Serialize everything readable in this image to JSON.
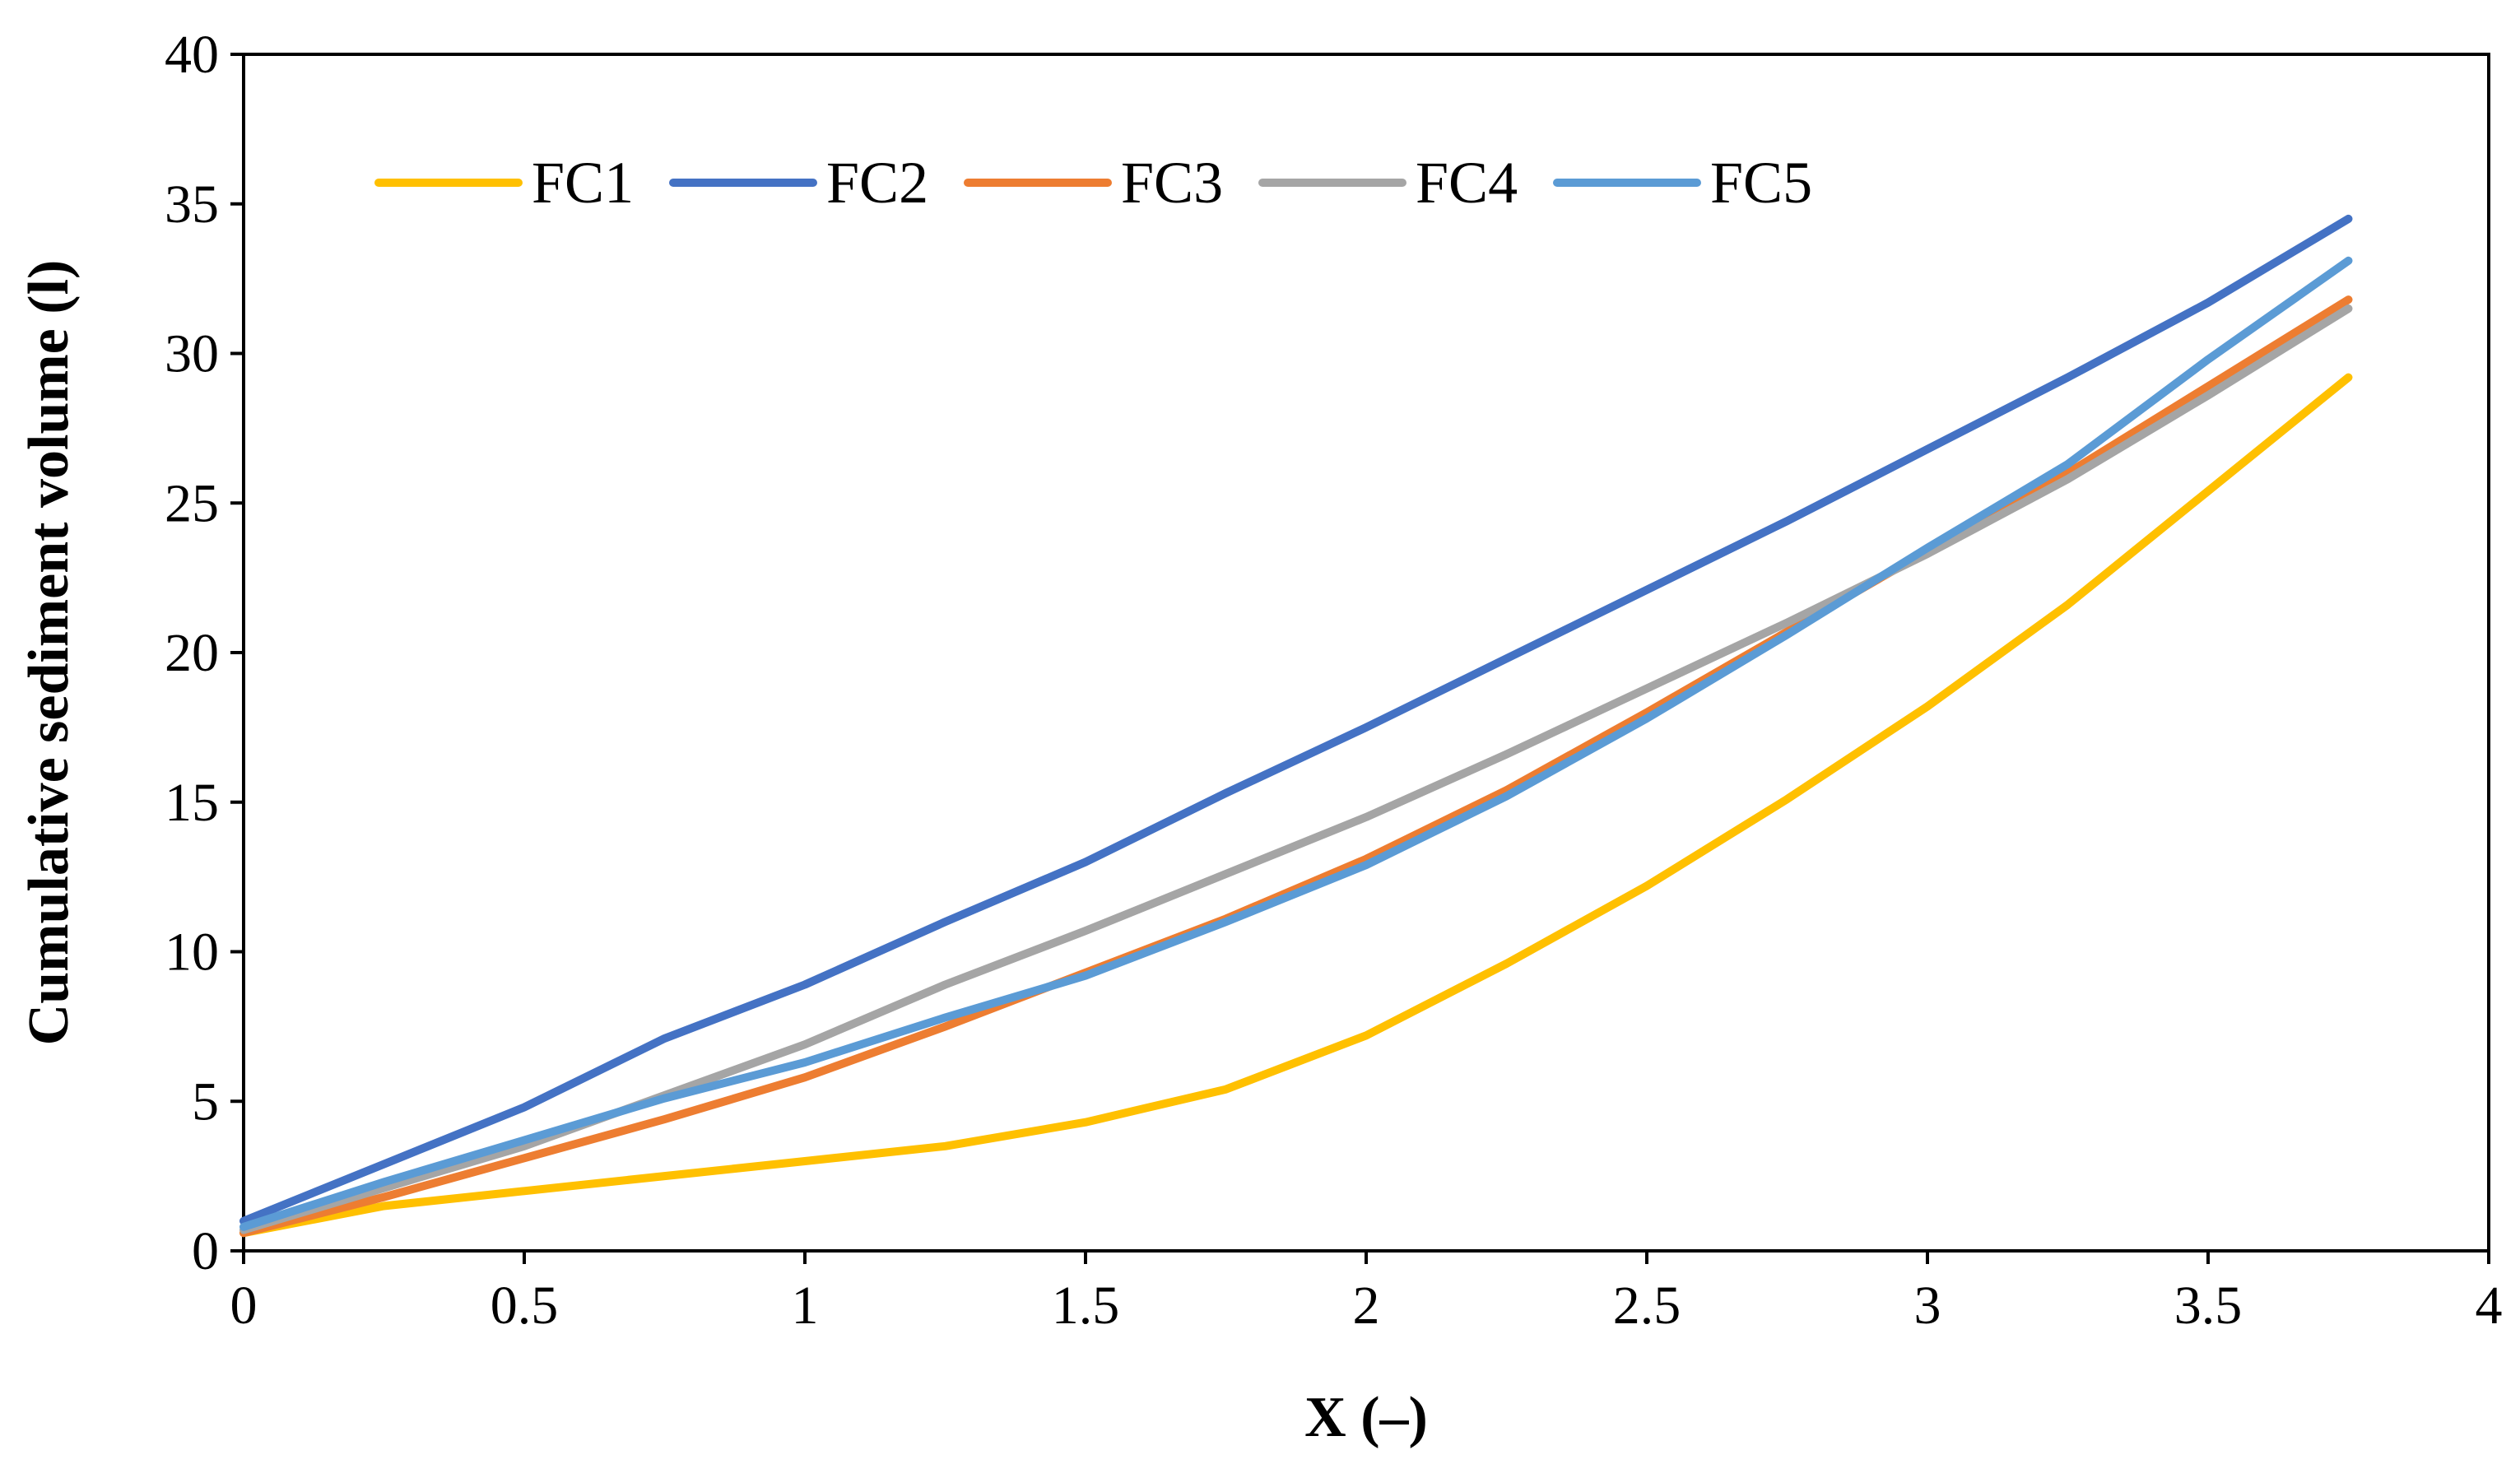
{
  "chart_data": {
    "type": "line",
    "title": "",
    "xlabel": "X (–)",
    "ylabel": "Cumulative sediment volume (l)",
    "xlim": [
      0,
      4
    ],
    "ylim": [
      0,
      40
    ],
    "xticks": [
      0,
      0.5,
      1,
      1.5,
      2,
      2.5,
      3,
      3.5,
      4
    ],
    "yticks": [
      0,
      5,
      10,
      15,
      20,
      25,
      30,
      35,
      40
    ],
    "xtick_labels": [
      "0",
      "0.5",
      "1",
      "1.5",
      "2",
      "2.5",
      "3",
      "3.5",
      "4"
    ],
    "ytick_labels": [
      "0",
      "5",
      "10",
      "15",
      "20",
      "25",
      "30",
      "35",
      "40"
    ],
    "grid": false,
    "legend_position": "top-left, inside, horizontal",
    "x": [
      0,
      0.25,
      0.5,
      0.75,
      1,
      1.25,
      1.5,
      1.75,
      2,
      2.25,
      2.5,
      2.75,
      3,
      3.25,
      3.5,
      3.75
    ],
    "series": [
      {
        "name": "FC1",
        "color": "#FFC000",
        "values": [
          0.6,
          1.5,
          2.0,
          2.5,
          3.0,
          3.5,
          4.3,
          5.4,
          7.2,
          9.6,
          12.2,
          15.1,
          18.2,
          21.6,
          25.4,
          29.2
        ]
      },
      {
        "name": "FC2",
        "color": "#4472C4",
        "values": [
          1.0,
          2.9,
          4.8,
          7.1,
          8.9,
          11.0,
          13.0,
          15.3,
          17.5,
          19.8,
          22.1,
          24.4,
          26.8,
          29.2,
          31.7,
          34.5
        ]
      },
      {
        "name": "FC3",
        "color": "#ED7D31",
        "values": [
          0.6,
          1.8,
          3.1,
          4.4,
          5.8,
          7.5,
          9.3,
          11.1,
          13.1,
          15.4,
          18.0,
          20.7,
          23.4,
          26.0,
          28.9,
          31.8
        ]
      },
      {
        "name": "FC4",
        "color": "#A5A5A5",
        "values": [
          0.7,
          2.1,
          3.5,
          5.2,
          6.9,
          8.9,
          10.7,
          12.6,
          14.5,
          16.6,
          18.8,
          21.0,
          23.3,
          25.8,
          28.6,
          31.5
        ]
      },
      {
        "name": "FC5",
        "color": "#5B9BD5",
        "values": [
          0.8,
          2.3,
          3.7,
          5.1,
          6.3,
          7.8,
          9.2,
          11.0,
          12.9,
          15.2,
          17.8,
          20.6,
          23.5,
          26.3,
          29.8,
          33.1
        ]
      }
    ]
  }
}
